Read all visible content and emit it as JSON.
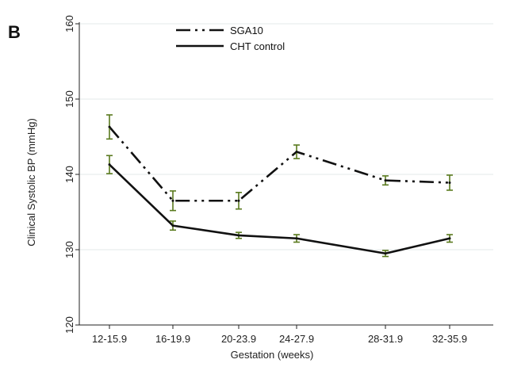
{
  "panel_label": "B",
  "chart_data": {
    "type": "line",
    "categories": [
      "12-15.9",
      "16-19.9",
      "20-23.9",
      "24-27.9",
      "28-31.9",
      "32-35.9"
    ],
    "xlabel": "Gestation (weeks)",
    "ylabel": "Clinical Systolic BP (mmHg)",
    "ylim": [
      120,
      160
    ],
    "yticks": [
      120,
      130,
      140,
      150,
      160
    ],
    "grid": "horizontal",
    "legend_position": "top-left",
    "error_bar_color": "#5a7a1e",
    "series": [
      {
        "name": "SGA10",
        "style": "dash-dot-dot",
        "color": "#111111",
        "values": [
          146.3,
          136.5,
          136.5,
          143.0,
          139.2,
          138.9
        ],
        "errors": [
          1.6,
          1.3,
          1.1,
          0.9,
          0.6,
          1.0
        ]
      },
      {
        "name": "CHT control",
        "style": "solid",
        "color": "#111111",
        "values": [
          141.3,
          133.2,
          131.9,
          131.5,
          129.5,
          131.5
        ],
        "errors": [
          1.2,
          0.6,
          0.4,
          0.5,
          0.4,
          0.5
        ]
      }
    ]
  }
}
